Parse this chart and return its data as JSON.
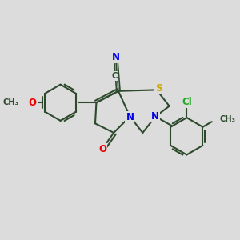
{
  "background_color": "#dcdcdc",
  "bond_color": "#2d4a2d",
  "atom_colors": {
    "N": "#0000ee",
    "O": "#ee0000",
    "S": "#ccaa00",
    "Cl": "#22aa22",
    "C": "#2d4a2d"
  },
  "figsize": [
    3.0,
    3.0
  ],
  "dpi": 100
}
